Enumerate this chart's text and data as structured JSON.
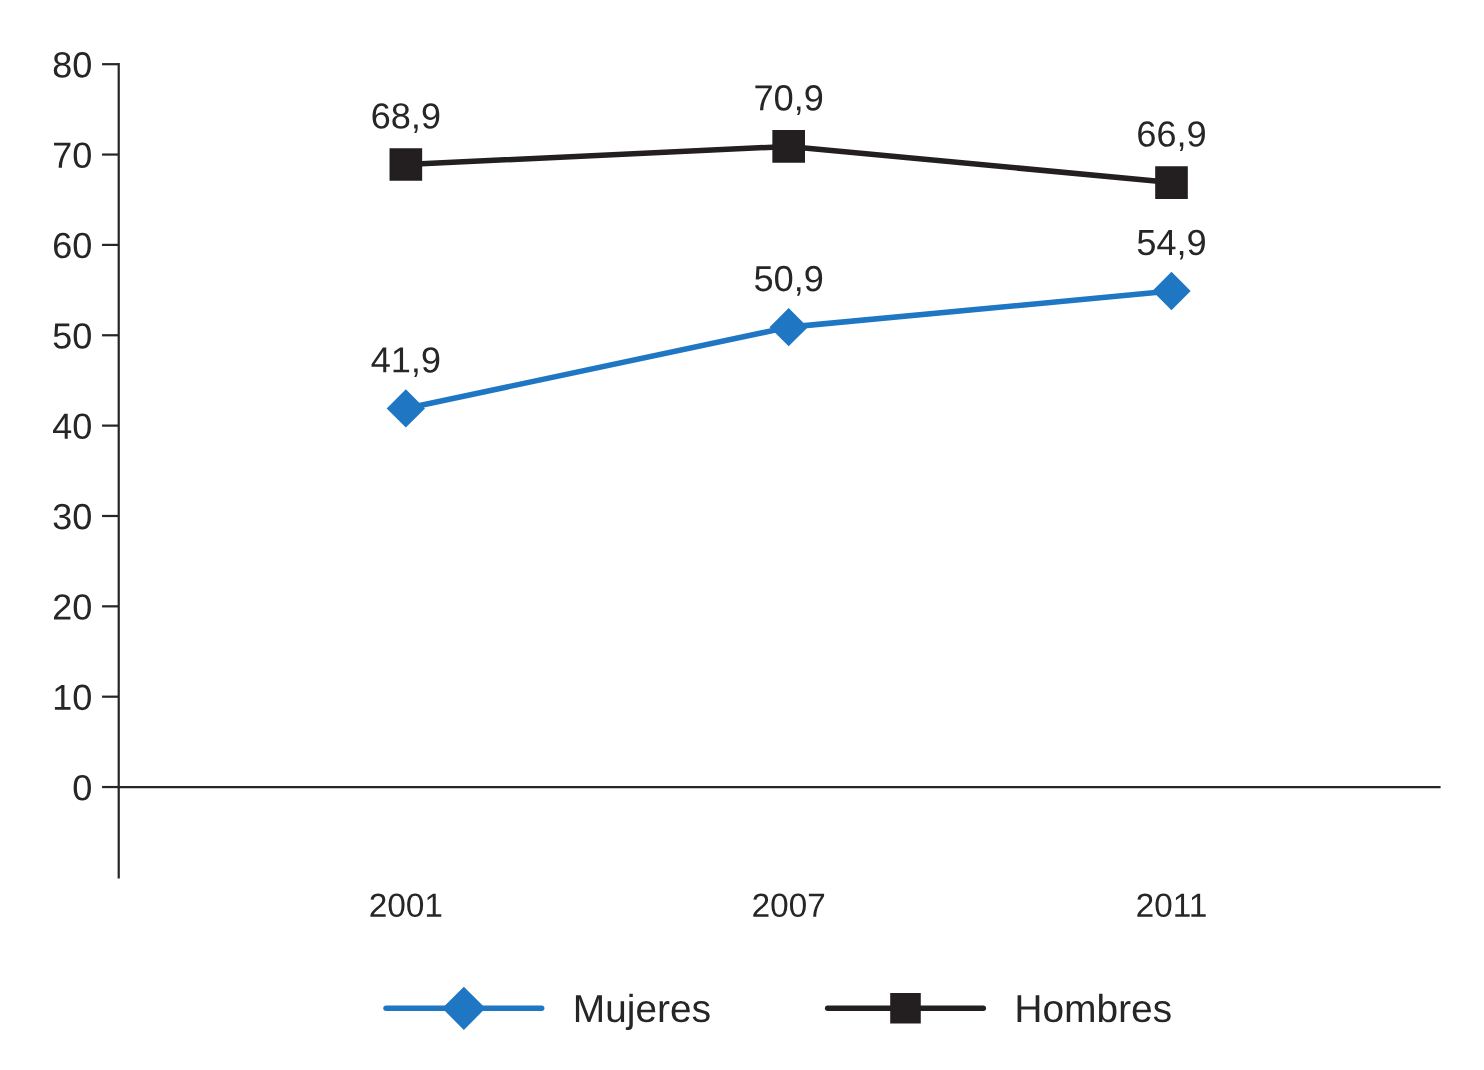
{
  "chart_data": {
    "type": "line",
    "categories": [
      "2001",
      "2007",
      "2011"
    ],
    "series": [
      {
        "name": "Mujeres",
        "color": "#1f77c4",
        "values": [
          41.9,
          50.9,
          54.9
        ],
        "value_labels": [
          "41,9",
          "50,9",
          "54,9"
        ],
        "marker": "diamond"
      },
      {
        "name": "Hombres",
        "color": "#231f20",
        "values": [
          68.9,
          70.9,
          66.9
        ],
        "value_labels": [
          "68,9",
          "70,9",
          "66,9"
        ],
        "marker": "square"
      }
    ],
    "ylim": [
      -10,
      80
    ],
    "yticks": [
      0,
      10,
      20,
      30,
      40,
      50,
      60,
      70,
      80
    ],
    "legend": "bottom",
    "line_style": "solid"
  }
}
